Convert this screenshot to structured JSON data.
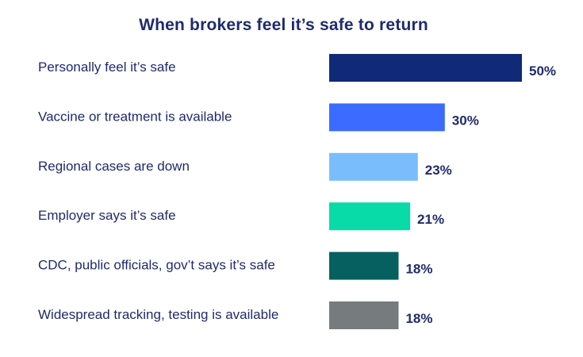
{
  "chart_data": {
    "type": "bar",
    "orientation": "horizontal",
    "title": "When brokers feel it’s safe to return",
    "categories": [
      "Personally feel it’s safe",
      "Vaccine or treatment is available",
      "Regional cases are down",
      "Employer says it’s safe",
      "CDC, public officials, gov’t says it’s safe",
      "Widespread tracking, testing is available"
    ],
    "values": [
      50,
      30,
      23,
      21,
      18,
      18
    ],
    "value_labels": [
      "50%",
      "30%",
      "23%",
      "21%",
      "18%",
      "18%"
    ],
    "colors": [
      "#102a78",
      "#3b6cff",
      "#79bdfd",
      "#08dba7",
      "#05605f",
      "#767b7e"
    ],
    "xlim": [
      0,
      50
    ],
    "grid": false,
    "legend": "none"
  }
}
